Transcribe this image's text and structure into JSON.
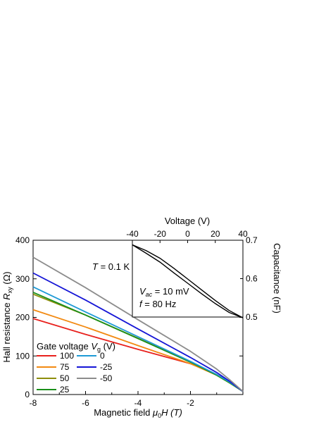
{
  "chart_data": [
    {
      "type": "line",
      "xlabel": "Magnetic field μ0H (T)",
      "ylabel": "Hall resistance Rxy (Ω)",
      "xlabel_parts": {
        "prefix": "Magnetic field ",
        "sym": "μ",
        "sub": "0",
        "suffix": "H (T)"
      },
      "ylabel_parts": {
        "prefix": "Hall resistance ",
        "sym": "R",
        "sub": "xy",
        "suffix": " (Ω)"
      },
      "xlim": [
        -8,
        0
      ],
      "ylim": [
        0,
        400
      ],
      "x_ticks": [
        -8,
        -6,
        -4,
        -2
      ],
      "y_ticks": [
        0,
        100,
        200,
        300,
        400
      ],
      "annotation": {
        "prefix": "T",
        "text": " = 0.1 K"
      },
      "legend": {
        "title_prefix": "Gate voltage ",
        "title_sym": "V",
        "title_sub": "g",
        "title_suffix": " (V)",
        "placement": "lower-left"
      },
      "series": [
        {
          "name": "100",
          "color": "#e8211d",
          "x": [
            -8,
            -6,
            -4,
            -2,
            -1,
            -0.5,
            0
          ],
          "y": [
            197,
            156,
            117,
            80,
            52,
            33,
            8
          ]
        },
        {
          "name": "75",
          "color": "#f28a12",
          "x": [
            -8,
            -6,
            -4,
            -2,
            -1,
            -0.5,
            0
          ],
          "y": [
            220,
            175,
            127,
            80,
            50,
            30,
            8
          ]
        },
        {
          "name": "50",
          "color": "#8e8e0b",
          "x": [
            -8,
            -6,
            -4,
            -2,
            -1,
            -0.5,
            0
          ],
          "y": [
            260,
            206,
            146,
            84,
            50,
            30,
            8
          ]
        },
        {
          "name": "25",
          "color": "#1a8f1a",
          "x": [
            -8,
            -6,
            -4,
            -2,
            -1,
            -0.5,
            0
          ],
          "y": [
            265,
            206,
            145,
            84,
            50,
            30,
            8
          ]
        },
        {
          "name": "0",
          "color": "#1e9ad6",
          "x": [
            -8,
            -6,
            -4,
            -2,
            -1,
            -0.5,
            0
          ],
          "y": [
            279,
            214,
            150,
            86,
            52,
            32,
            8
          ]
        },
        {
          "name": "-25",
          "color": "#1515d6",
          "x": [
            -8,
            -6,
            -4,
            -2,
            -1,
            -0.5,
            0
          ],
          "y": [
            315,
            245,
            170,
            96,
            57,
            34,
            8
          ]
        },
        {
          "name": "-50",
          "color": "#8c8c8c",
          "x": [
            -8,
            -6,
            -4,
            -2,
            -1,
            -0.5,
            0
          ],
          "y": [
            356,
            277,
            194,
            112,
            66,
            38,
            8
          ]
        }
      ]
    },
    {
      "type": "line",
      "xlabel": "Voltage (V)",
      "ylabel": "Capacitance (nF)",
      "xlim": [
        -40,
        40
      ],
      "ylim": [
        0.5,
        0.7
      ],
      "x_ticks": [
        -40,
        -20,
        0,
        20,
        40
      ],
      "y_ticks": [
        0.5,
        0.6,
        0.7
      ],
      "annotations": [
        {
          "sym": "V",
          "sub": "ac",
          "text": " = 10 mV"
        },
        {
          "sym": "f",
          "text": " = 80 Hz"
        }
      ],
      "series": [
        {
          "name": "",
          "color": "#000000",
          "x": [
            -40,
            -30,
            -20,
            -10,
            0,
            10,
            20,
            30,
            40
          ],
          "y": [
            0.688,
            0.673,
            0.653,
            0.627,
            0.599,
            0.571,
            0.543,
            0.517,
            0.498
          ]
        },
        {
          "name": "",
          "color": "#000000",
          "x": [
            -40,
            -30,
            -20,
            -10,
            0,
            10,
            20,
            30,
            40
          ],
          "y": [
            0.688,
            0.666,
            0.643,
            0.615,
            0.588,
            0.561,
            0.535,
            0.512,
            0.498
          ]
        }
      ]
    }
  ]
}
